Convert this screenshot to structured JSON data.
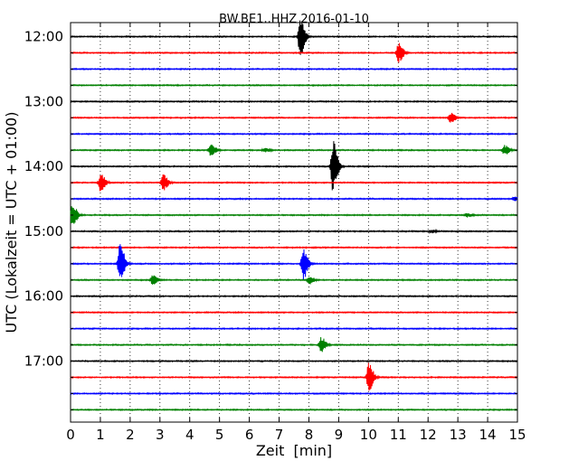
{
  "chart_data": {
    "type": "line",
    "title": "BW.BE1..HHZ 2016-01-10",
    "xlabel": "Zeit  [min]",
    "ylabel": "UTC (Lokalzeit = UTC + 01:00)",
    "xlim": [
      0,
      15
    ],
    "x_ticks": [
      "0",
      "1",
      "2",
      "3",
      "4",
      "5",
      "6",
      "7",
      "8",
      "9",
      "10",
      "11",
      "12",
      "13",
      "14",
      "15"
    ],
    "y_tick_labels": [
      "12:00",
      "13:00",
      "14:00",
      "15:00",
      "16:00",
      "17:00"
    ],
    "grid": true,
    "grid_axis": "x",
    "minutes_per_line": 15,
    "series_colors": [
      "#000000",
      "#ff0000",
      "#0000ff",
      "#008000"
    ],
    "traces": [
      {
        "start": "12:00",
        "events": [
          {
            "t": 7.7,
            "amp": 1.0
          }
        ]
      },
      {
        "start": "12:15",
        "events": [
          {
            "t": 11.0,
            "amp": 0.5
          }
        ]
      },
      {
        "start": "12:30",
        "events": []
      },
      {
        "start": "12:45",
        "events": []
      },
      {
        "start": "13:00",
        "events": []
      },
      {
        "start": "13:15",
        "events": [
          {
            "t": 12.75,
            "amp": 0.25
          }
        ]
      },
      {
        "start": "13:30",
        "events": []
      },
      {
        "start": "13:45",
        "events": [
          {
            "t": 4.7,
            "amp": 0.35
          },
          {
            "t": 6.5,
            "amp": 0.1
          },
          {
            "t": 14.55,
            "amp": 0.25
          }
        ]
      },
      {
        "start": "14:00",
        "events": [
          {
            "t": 8.8,
            "amp": 1.3
          }
        ]
      },
      {
        "start": "14:15",
        "events": [
          {
            "t": 1.0,
            "amp": 0.45
          },
          {
            "t": 3.1,
            "amp": 0.4
          }
        ]
      },
      {
        "start": "14:30",
        "events": [
          {
            "t": 14.9,
            "amp": 0.1
          }
        ]
      },
      {
        "start": "14:45",
        "events": [
          {
            "t": 0.05,
            "amp": 0.6
          },
          {
            "t": 13.3,
            "amp": 0.1
          }
        ]
      },
      {
        "start": "15:00",
        "events": [
          {
            "t": 12.1,
            "amp": 0.08
          }
        ]
      },
      {
        "start": "15:15",
        "events": []
      },
      {
        "start": "15:30",
        "events": [
          {
            "t": 1.65,
            "amp": 1.0
          },
          {
            "t": 7.8,
            "amp": 0.8
          }
        ]
      },
      {
        "start": "15:45",
        "events": [
          {
            "t": 2.75,
            "amp": 0.25
          },
          {
            "t": 8.0,
            "amp": 0.2
          }
        ]
      },
      {
        "start": "16:00",
        "events": []
      },
      {
        "start": "16:15",
        "events": []
      },
      {
        "start": "16:30",
        "events": []
      },
      {
        "start": "16:45",
        "events": [
          {
            "t": 8.4,
            "amp": 0.4
          }
        ]
      },
      {
        "start": "17:00",
        "events": []
      },
      {
        "start": "17:15",
        "events": [
          {
            "t": 10.0,
            "amp": 0.7
          }
        ]
      },
      {
        "start": "17:30",
        "events": []
      },
      {
        "start": "17:45",
        "events": []
      }
    ]
  }
}
